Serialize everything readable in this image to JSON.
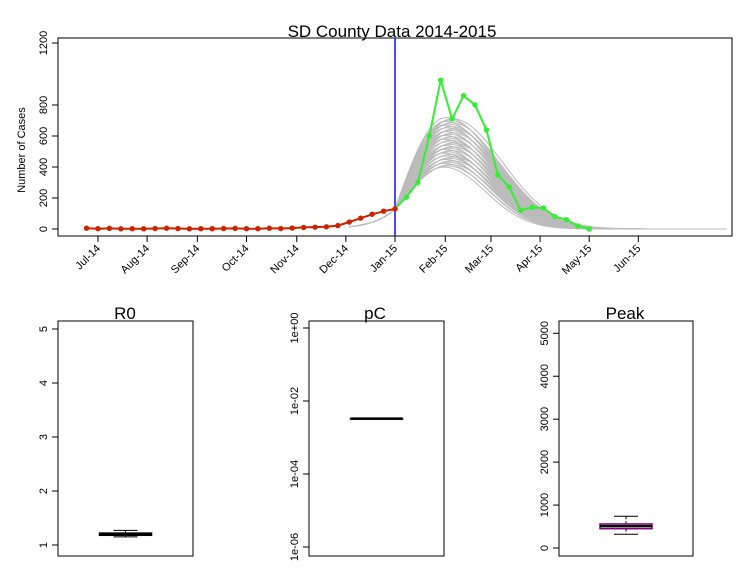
{
  "chart_data": [
    {
      "type": "line",
      "title": "SD County Data 2014-2015",
      "xlabel": "",
      "ylabel": "Number of Cases",
      "ylim": [
        0,
        1200
      ],
      "yticks": [
        0,
        200,
        400,
        600,
        800,
        1200
      ],
      "x_tick_labels": [
        "Jul-14",
        "Aug-14",
        "Sep-14",
        "Oct-14",
        "Nov-14",
        "Dec-14",
        "Jan-15",
        "Feb-15",
        "Mar-15",
        "Apr-15",
        "May-15",
        "Jun-15"
      ],
      "forecast_start": "Jan-15 (week 0)",
      "series": [
        {
          "role": "observed_fit_period",
          "color": "#cc2200",
          "x_weeks": [
            -27,
            -26,
            -25,
            -24,
            -23,
            -22,
            -21,
            -20,
            -19,
            -18,
            -17,
            -16,
            -15,
            -14,
            -13,
            -12,
            -11,
            -10,
            -9,
            -8,
            -7,
            -6,
            -5,
            -4,
            -3,
            -2,
            -1,
            0
          ],
          "values": [
            5,
            2,
            4,
            1,
            2,
            1,
            3,
            5,
            3,
            1,
            2,
            2,
            3,
            4,
            2,
            2,
            5,
            3,
            6,
            10,
            12,
            14,
            22,
            45,
            70,
            95,
            115,
            130
          ]
        },
        {
          "role": "observed_after",
          "color": "#33ee33",
          "x_weeks": [
            0,
            1,
            2,
            3,
            4,
            5,
            6,
            7,
            8,
            9,
            10,
            11,
            12,
            13,
            14,
            15,
            16,
            17
          ],
          "values": [
            130,
            205,
            300,
            600,
            960,
            710,
            860,
            800,
            640,
            350,
            270,
            120,
            140,
            135,
            80,
            60,
            20,
            0
          ]
        },
        {
          "role": "simulated_trajectories",
          "color": "#bbbbbb",
          "count": 40,
          "peak_week": 4.7,
          "peak_range": [
            400,
            720
          ]
        }
      ]
    },
    {
      "type": "boxplot",
      "title": "R0",
      "ylim": [
        0.5,
        5
      ],
      "yticks": [
        1,
        2,
        3,
        4,
        5
      ],
      "tick_labels": [
        "1",
        "2",
        "3",
        "4",
        "5"
      ],
      "box": {
        "min": 1.15,
        "q1": 1.18,
        "median": 1.2,
        "q3": 1.22,
        "max": 1.27
      },
      "color": "#000000"
    },
    {
      "type": "boxplot",
      "title": "pC",
      "log_scale": true,
      "ylim": [
        1e-06,
        1
      ],
      "yticks": [
        1e-06,
        0.0001,
        0.01,
        1
      ],
      "tick_labels": [
        "1e-06",
        "1e-04",
        "1e-02",
        "1e+00"
      ],
      "box": {
        "min": 0.0033,
        "q1": 0.0033,
        "median": 0.0033,
        "q3": 0.0033,
        "max": 0.0033
      },
      "color": "#000000"
    },
    {
      "type": "boxplot",
      "title": "Peak",
      "ylim": [
        0,
        5100
      ],
      "yticks": [
        0,
        1000,
        2000,
        3000,
        4000,
        5000
      ],
      "tick_labels": [
        "0",
        "1000",
        "2000",
        "3000",
        "4000",
        "5000"
      ],
      "box": {
        "min": 320,
        "q1": 450,
        "median": 510,
        "q3": 560,
        "max": 740
      },
      "color": "#800080"
    }
  ]
}
